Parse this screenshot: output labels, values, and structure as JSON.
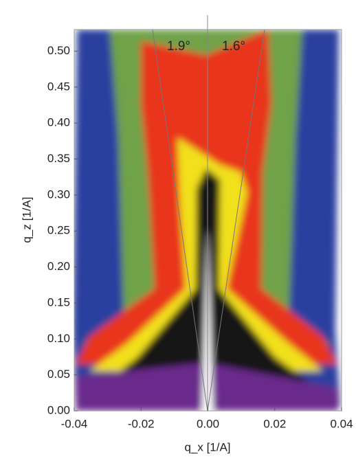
{
  "chart_data": {
    "type": "heatmap",
    "xlabel": "q_x [1/A]",
    "ylabel": "q_z [1/A]",
    "annotations": [
      "1.9°",
      "1.6°"
    ],
    "xlim": [
      -0.04,
      0.04
    ],
    "xticks": [
      -0.04,
      -0.02,
      {
        "value": 0,
        "label": "0.00"
      },
      0.02,
      0.04
    ],
    "ylim": [
      0,
      0.53
    ],
    "yticks": [
      {
        "value": 0,
        "label": "0.00"
      },
      0.05,
      {
        "value": 0.1,
        "label": "0.10"
      },
      0.15,
      {
        "value": 0.2,
        "label": "0.20"
      },
      0.25,
      {
        "value": 0.3,
        "label": "0.30"
      },
      0.35,
      {
        "value": 0.4,
        "label": "0.40"
      },
      0.45,
      {
        "value": 0.5,
        "label": "0.50"
      }
    ]
  }
}
